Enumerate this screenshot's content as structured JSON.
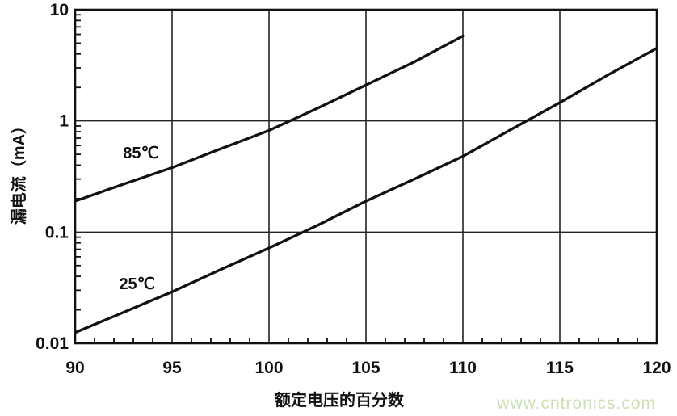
{
  "page": {
    "background": "#ffffff"
  },
  "watermark": {
    "text": "www.cntronics.com",
    "color": "#c9e2b4"
  },
  "chart_data": {
    "type": "line",
    "y_scale": "log",
    "title": "",
    "xlabel": "额定电压的百分数",
    "ylabel": "漏电流（mA）",
    "xlim": [
      90,
      120
    ],
    "ylim": [
      0.01,
      10
    ],
    "x_ticks": [
      90,
      95,
      100,
      105,
      110,
      115,
      120
    ],
    "y_ticks": [
      {
        "value": 10,
        "label": "10"
      },
      {
        "value": 1,
        "label": "1"
      },
      {
        "value": 0.1,
        "label": "0.1"
      },
      {
        "value": 0.01,
        "label": "0.01"
      }
    ],
    "x_minor_tick_step": 1,
    "y_minor_ticks_per_decade": [
      2,
      3,
      4,
      5,
      6,
      7,
      8,
      9
    ],
    "grid": true,
    "grid_color": "#222222",
    "line_color": "#111111",
    "series": [
      {
        "name": "85℃",
        "x": [
          90,
          92.5,
          95,
          97.5,
          100,
          102.5,
          105,
          107.5,
          110
        ],
        "y": [
          0.19,
          0.27,
          0.38,
          0.56,
          0.82,
          1.3,
          2.1,
          3.4,
          5.8
        ],
        "label_pos": [
          93.4,
          0.51
        ]
      },
      {
        "name": "25℃",
        "x": [
          90,
          92.5,
          95,
          97.5,
          100,
          102.5,
          105,
          107.5,
          110,
          112.5,
          115,
          117.5,
          120
        ],
        "y": [
          0.0125,
          0.019,
          0.029,
          0.046,
          0.072,
          0.115,
          0.19,
          0.3,
          0.48,
          0.84,
          1.46,
          2.6,
          4.5
        ],
        "label_pos": [
          93.2,
          0.034
        ]
      }
    ]
  }
}
